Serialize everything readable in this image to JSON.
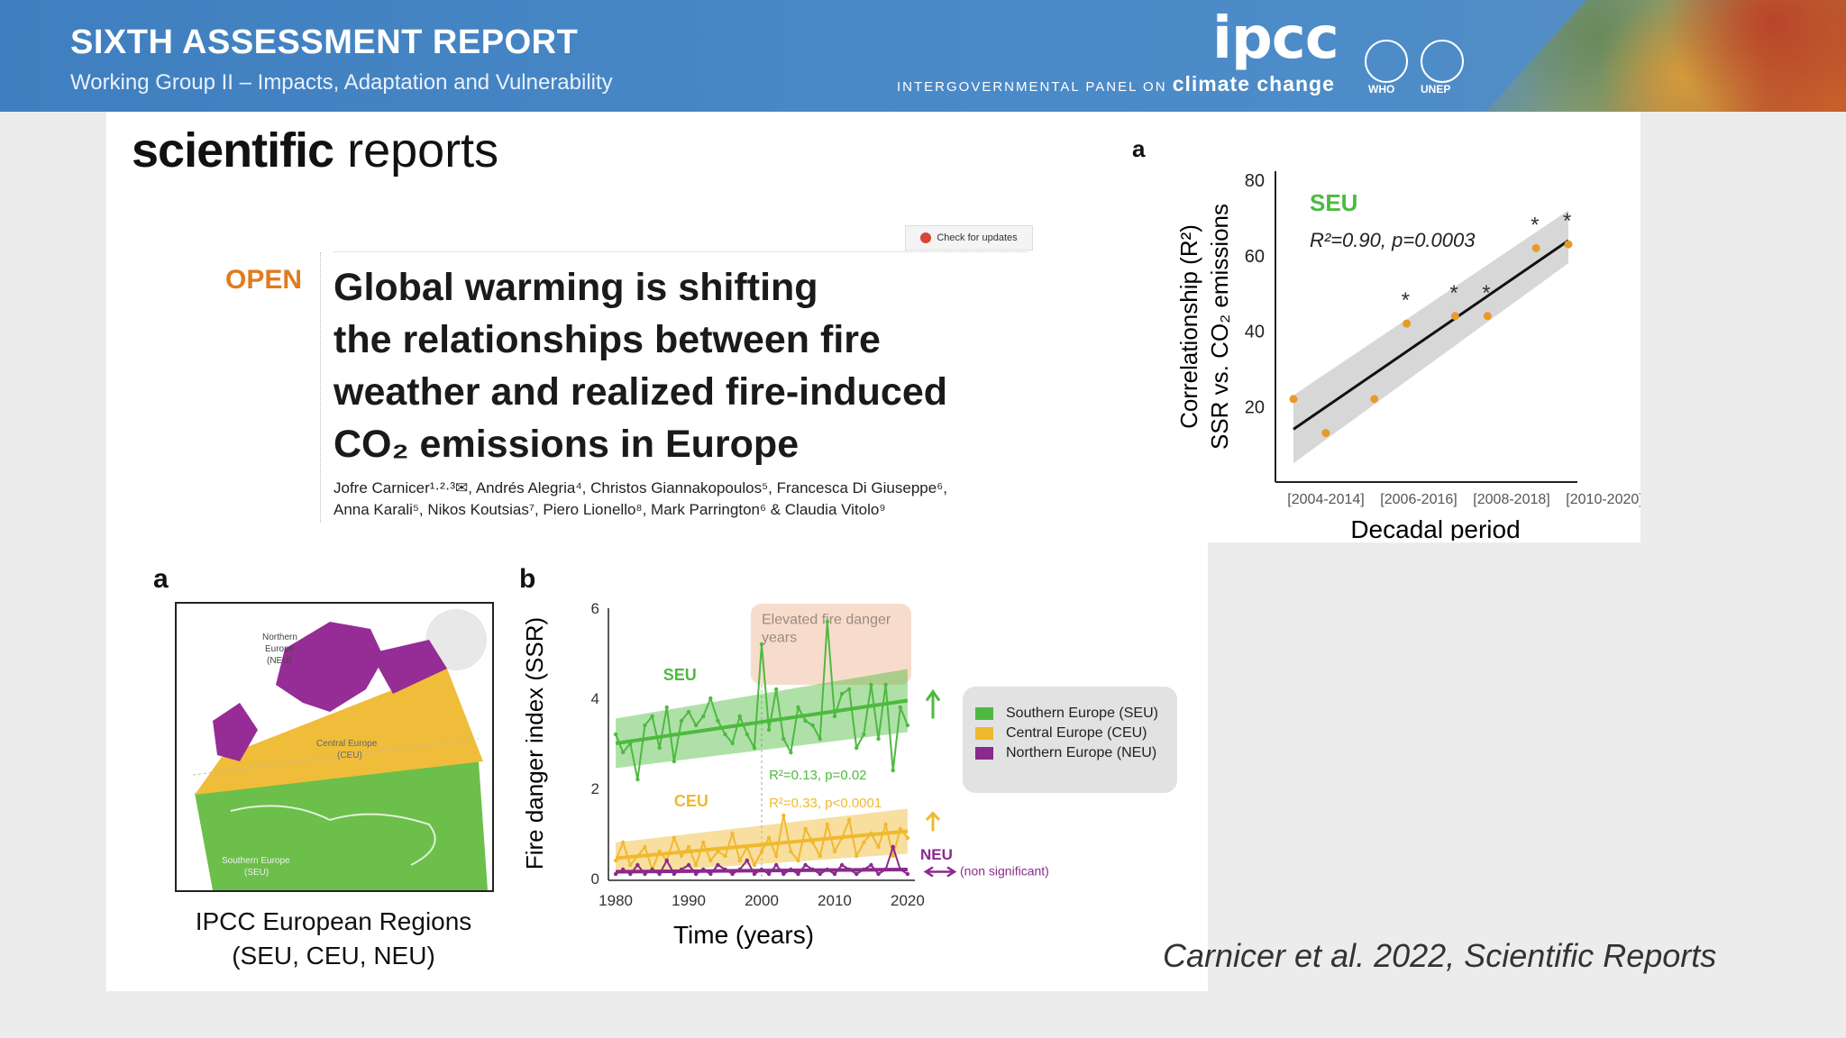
{
  "header": {
    "report_title": "SIXTH ASSESSMENT REPORT",
    "report_subtitle": "Working Group II – Impacts, Adaptation and Vulnerability",
    "ipcc_logo": "ipcc",
    "ipcc_tagline_small": "INTERGOVERNMENTAL PANEL ON",
    "ipcc_tagline_big": "climate change",
    "who_label": "WHO",
    "unep_label": "UNEP"
  },
  "paper": {
    "journal_bold": "scientific",
    "journal_rest": "reports",
    "check_updates": "Check for updates",
    "open_label": "OPEN",
    "title_lines": [
      "Global warming is shifting",
      "the relationships between fire",
      "weather and realized fire-induced",
      "CO₂ emissions in Europe"
    ],
    "authors_lines": [
      "Jofre Carnicer¹·²·³✉, Andrés Alegria⁴, Christos Giannakopoulos⁵, Francesca Di Giuseppe⁶,",
      "Anna Karali⁵, Nikos Koutsias⁷, Piero Lionello⁸, Mark Parrington⁶ & Claudia Vitolo⁹"
    ]
  },
  "map": {
    "panel_label": "a",
    "caption_lines": [
      "IPCC European Regions",
      "(SEU, CEU, NEU)"
    ],
    "region_labels": {
      "neu": [
        "Northern",
        "Europe",
        "(NEU)"
      ],
      "ceu": [
        "Central Europe",
        "(CEU)"
      ],
      "seu": [
        "Southern Europe",
        "(SEU)"
      ]
    }
  },
  "colors": {
    "seu": "#4dba3f",
    "ceu": "#f0b92d",
    "neu": "#8a2a8c",
    "orange_dot": "#e79a2a",
    "open": "#e07b1e",
    "banner": "#4a8ac8"
  },
  "citation": "Carnicer et al. 2022, Scientific Reports",
  "chart_data": [
    {
      "type": "line",
      "panel_label": "b",
      "xlabel": "Time (years)",
      "ylabel": "Fire danger index (SSR)",
      "xlim": [
        1979,
        2021
      ],
      "ylim": [
        0,
        6
      ],
      "x_ticks": [
        1980,
        1990,
        2000,
        2010,
        2020
      ],
      "y_ticks": [
        0,
        2,
        4,
        6
      ],
      "annotation": "Elevated fire danger years",
      "series": [
        {
          "name": "SEU",
          "legend": "Southern Europe (SEU)",
          "x": [
            1980,
            1981,
            1982,
            1983,
            1984,
            1985,
            1986,
            1987,
            1988,
            1989,
            1990,
            1991,
            1992,
            1993,
            1994,
            1995,
            1996,
            1997,
            1998,
            1999,
            2000,
            2001,
            2002,
            2003,
            2004,
            2005,
            2006,
            2007,
            2008,
            2009,
            2010,
            2011,
            2012,
            2013,
            2014,
            2015,
            2016,
            2017,
            2018,
            2019,
            2020
          ],
          "values": [
            3.2,
            2.8,
            3.0,
            2.2,
            3.4,
            3.6,
            2.9,
            3.8,
            2.6,
            3.5,
            3.7,
            3.4,
            3.6,
            4.0,
            3.5,
            3.2,
            3.0,
            3.6,
            3.2,
            2.9,
            5.2,
            3.3,
            4.2,
            3.1,
            2.8,
            3.8,
            3.5,
            3.4,
            3.1,
            5.7,
            3.6,
            4.1,
            4.2,
            2.9,
            3.2,
            4.3,
            3.1,
            4.3,
            2.4,
            3.8,
            3.4
          ],
          "trend": [
            3.0,
            3.95
          ],
          "stat": "R²=0.13, p=0.02",
          "arrow": "up"
        },
        {
          "name": "CEU",
          "legend": "Central Europe (CEU)",
          "x": [
            1980,
            1981,
            1982,
            1983,
            1984,
            1985,
            1986,
            1987,
            1988,
            1989,
            1990,
            1991,
            1992,
            1993,
            1994,
            1995,
            1996,
            1997,
            1998,
            1999,
            2000,
            2001,
            2002,
            2003,
            2004,
            2005,
            2006,
            2007,
            2008,
            2009,
            2010,
            2011,
            2012,
            2013,
            2014,
            2015,
            2016,
            2017,
            2018,
            2019,
            2020
          ],
          "values": [
            0.4,
            0.8,
            0.3,
            0.5,
            0.7,
            0.2,
            0.6,
            0.4,
            0.9,
            0.5,
            0.7,
            0.3,
            0.8,
            0.4,
            0.6,
            0.5,
            1.0,
            0.4,
            0.7,
            0.3,
            0.6,
            0.9,
            0.5,
            1.4,
            0.6,
            0.4,
            1.1,
            0.8,
            0.5,
            1.2,
            0.6,
            0.9,
            1.3,
            0.5,
            0.8,
            1.0,
            0.7,
            1.2,
            0.5,
            1.1,
            0.9
          ],
          "trend": [
            0.45,
            1.05
          ],
          "stat": "R²=0.33, p<0.0001",
          "arrow": "up"
        },
        {
          "name": "NEU",
          "legend": "Northern Europe (NEU)",
          "x": [
            1980,
            1981,
            1982,
            1983,
            1984,
            1985,
            1986,
            1987,
            1988,
            1989,
            1990,
            1991,
            1992,
            1993,
            1994,
            1995,
            1996,
            1997,
            1998,
            1999,
            2000,
            2001,
            2002,
            2003,
            2004,
            2005,
            2006,
            2007,
            2008,
            2009,
            2010,
            2011,
            2012,
            2013,
            2014,
            2015,
            2016,
            2017,
            2018,
            2019,
            2020
          ],
          "values": [
            0.1,
            0.2,
            0.1,
            0.3,
            0.1,
            0.2,
            0.1,
            0.4,
            0.1,
            0.2,
            0.3,
            0.1,
            0.2,
            0.1,
            0.3,
            0.2,
            0.1,
            0.2,
            0.4,
            0.1,
            0.2,
            0.1,
            0.3,
            0.1,
            0.2,
            0.1,
            0.3,
            0.2,
            0.1,
            0.2,
            0.1,
            0.3,
            0.2,
            0.1,
            0.2,
            0.3,
            0.1,
            0.2,
            0.7,
            0.2,
            0.1
          ],
          "trend": [
            0.15,
            0.2
          ],
          "stat": "(non significant)",
          "arrow": "flat"
        }
      ]
    },
    {
      "type": "scatter",
      "panel_label": "a",
      "series_label": "SEU",
      "stat": "R²=0.90, p=0.0003",
      "xlabel": "Decadal period",
      "ylabel_line1": "Correlationship (R²)",
      "ylabel_line2": "SSR vs. CO₂ emissions",
      "ylim": [
        0,
        80
      ],
      "y_ticks": [
        20,
        40,
        60,
        80
      ],
      "x_tick_labels": [
        "[2004-2014]",
        "[2006-2016]",
        "[2008-2018]",
        "[2010-2020]"
      ],
      "points": [
        {
          "x": 0,
          "y": 22
        },
        {
          "x": 0.4,
          "y": 13
        },
        {
          "x": 1.0,
          "y": 22
        },
        {
          "x": 1.4,
          "y": 42
        },
        {
          "x": 2.0,
          "y": 44
        },
        {
          "x": 2.4,
          "y": 44
        },
        {
          "x": 3.0,
          "y": 62
        },
        {
          "x": 3.4,
          "y": 63
        }
      ],
      "significant_x": [
        1.4,
        2.0,
        2.4,
        3.0,
        3.4
      ],
      "trend": [
        {
          "x": 0,
          "y": 14
        },
        {
          "x": 3.4,
          "y": 64
        }
      ]
    }
  ]
}
